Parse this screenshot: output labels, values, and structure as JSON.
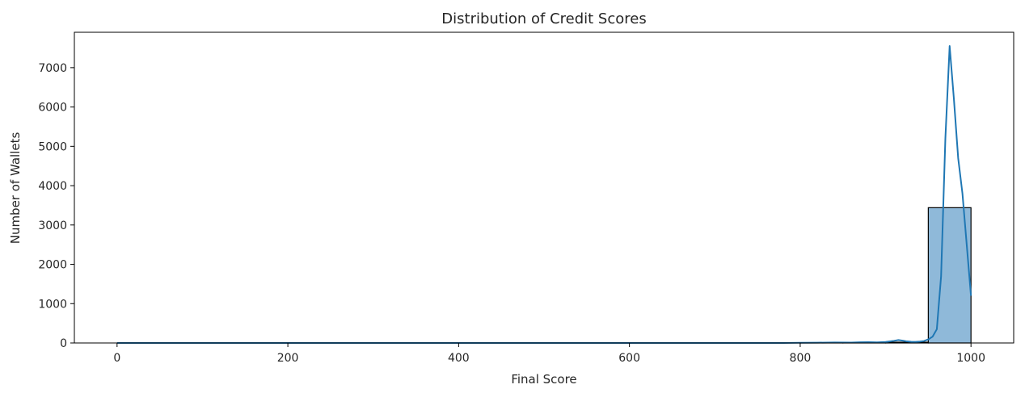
{
  "chart_data": {
    "type": "bar",
    "subtype": "histogram-with-kde",
    "title": "Distribution of Credit Scores",
    "xlabel": "Final Score",
    "ylabel": "Number of Wallets",
    "xlim": [
      -50,
      1050
    ],
    "ylim": [
      0,
      7900
    ],
    "xticks": [
      0,
      200,
      400,
      600,
      800,
      1000
    ],
    "yticks": [
      0,
      1000,
      2000,
      3000,
      4000,
      5000,
      6000,
      7000
    ],
    "grid": false,
    "legend": "none",
    "bins": [
      {
        "x0": 0,
        "x1": 50,
        "count": 0
      },
      {
        "x0": 50,
        "x1": 100,
        "count": 0
      },
      {
        "x0": 100,
        "x1": 150,
        "count": 0
      },
      {
        "x0": 150,
        "x1": 200,
        "count": 0
      },
      {
        "x0": 200,
        "x1": 250,
        "count": 0
      },
      {
        "x0": 250,
        "x1": 300,
        "count": 0
      },
      {
        "x0": 300,
        "x1": 350,
        "count": 0
      },
      {
        "x0": 350,
        "x1": 400,
        "count": 0
      },
      {
        "x0": 400,
        "x1": 450,
        "count": 0
      },
      {
        "x0": 450,
        "x1": 500,
        "count": 0
      },
      {
        "x0": 500,
        "x1": 550,
        "count": 0
      },
      {
        "x0": 550,
        "x1": 600,
        "count": 0
      },
      {
        "x0": 600,
        "x1": 650,
        "count": 0
      },
      {
        "x0": 650,
        "x1": 700,
        "count": 0
      },
      {
        "x0": 700,
        "x1": 750,
        "count": 0
      },
      {
        "x0": 750,
        "x1": 800,
        "count": 0
      },
      {
        "x0": 800,
        "x1": 850,
        "count": 2
      },
      {
        "x0": 850,
        "x1": 900,
        "count": 4
      },
      {
        "x0": 900,
        "x1": 950,
        "count": 20
      },
      {
        "x0": 950,
        "x1": 1000,
        "count": 3440
      }
    ],
    "kde": {
      "x": [
        0,
        100,
        200,
        300,
        400,
        500,
        600,
        700,
        780,
        800,
        820,
        840,
        860,
        870,
        880,
        890,
        900,
        910,
        915,
        920,
        925,
        930,
        935,
        940,
        945,
        950,
        955,
        960,
        965,
        970,
        975,
        980,
        985,
        990,
        995,
        1000
      ],
      "y": [
        0,
        0,
        0,
        0,
        0,
        0,
        0,
        0,
        0,
        5,
        8,
        12,
        10,
        18,
        20,
        15,
        25,
        55,
        75,
        60,
        40,
        30,
        28,
        35,
        50,
        90,
        160,
        350,
        1700,
        5200,
        7550,
        6200,
        4700,
        3800,
        2500,
        1200
      ]
    },
    "colors": {
      "bar_fill": "#8fb9d9",
      "bar_edge": "#000000",
      "kde_line": "#1f77b4",
      "axes": "#000000",
      "text": "#262626"
    }
  }
}
